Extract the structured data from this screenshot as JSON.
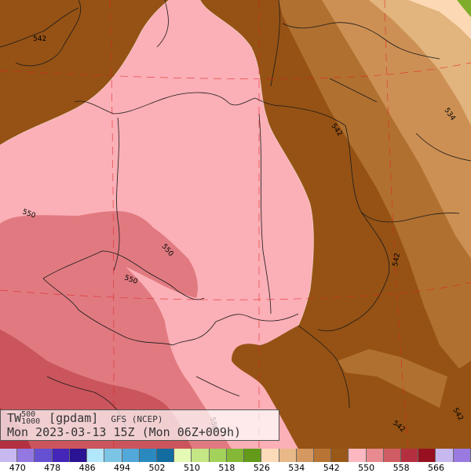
{
  "map": {
    "fill_colors": {
      "level_534": "#fcd8b4",
      "level_534_538": "#e2b47e",
      "level_538_542": "#cd9054",
      "level_542_546": "#b07030",
      "level_546_550": "#955214",
      "level_550_554": "#fbafb6",
      "level_554_558": "#e07a80",
      "level_558_562": "#cb555c",
      "level_562_566": "#b33040",
      "outside_green": "#7fac2a"
    },
    "contour_labels": [
      {
        "text": "542"
      },
      {
        "text": "542"
      },
      {
        "text": "534"
      },
      {
        "text": "550"
      },
      {
        "text": "550"
      },
      {
        "text": "550"
      },
      {
        "text": "542"
      },
      {
        "text": "542"
      },
      {
        "text": "542"
      },
      {
        "text": "550"
      }
    ]
  },
  "info": {
    "tw": "TW",
    "sup": "500",
    "sub": "1000",
    "unit": "[gpdam]",
    "model": "GFS (NCEP)",
    "time": "Mon 2023-03-13 15Z (Mon 06Z+009h)"
  },
  "colorbar": {
    "colors": [
      "#c8b8f0",
      "#9278e0",
      "#6450d0",
      "#4426b8",
      "#2a1494",
      "#b2e6fa",
      "#7cc4e6",
      "#52a8d8",
      "#2a8ac0",
      "#126ca0",
      "#e4fab4",
      "#c4e684",
      "#a2d25a",
      "#84b836",
      "#649a1a",
      "#fcdcb8",
      "#e8b888",
      "#d49860",
      "#b87434",
      "#9a5818",
      "#fbb8c0",
      "#e88a90",
      "#d05c64",
      "#b43040",
      "#961020",
      "#c8b8f0",
      "#9a7ae0"
    ],
    "labels": [
      "470",
      "478",
      "486",
      "494",
      "502",
      "510",
      "518",
      "526",
      "534",
      "542",
      "550",
      "558",
      "566"
    ]
  }
}
